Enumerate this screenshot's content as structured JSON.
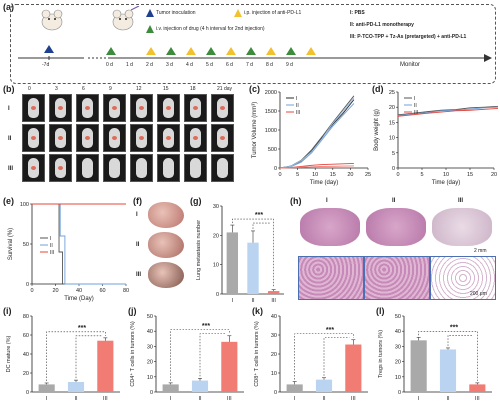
{
  "panels": {
    "a": "(a)",
    "b": "(b)",
    "c": "(c)",
    "d": "(d)",
    "e": "(e)",
    "f": "(f)",
    "g": "(g)",
    "h": "(h)",
    "i": "(i)",
    "j": "(j)",
    "k": "(k)",
    "l": "(l)"
  },
  "timeline": {
    "start_day": "-7d",
    "days": [
      "0 d",
      "1 d",
      "2 d",
      "3 d",
      "4 d",
      "5 d",
      "6 d",
      "7 d",
      "8 d",
      "9 d"
    ],
    "tumor_inoculation": "Tumor inoculation",
    "ip_injection": "i.p. injection of anti-PD-L1",
    "iv_injection": "i.v. injection of drug (4 h interval for 2nd injection)",
    "groups": [
      "I: PBS",
      "II: anti-PD-L1 monotherapy",
      "III: P-TCO-TPP + Tz-As (pretargeted) + anti-PD-L1"
    ],
    "monitor": "Monitor",
    "colors": {
      "tumor": "#1f3f8f",
      "ip": "#f2c12e",
      "iv": "#3c8c3c"
    }
  },
  "imaging": {
    "days": [
      "0",
      "3",
      "6",
      "9",
      "12",
      "15",
      "18",
      "21 day"
    ],
    "rows": [
      "I",
      "II",
      "III"
    ]
  },
  "chart_data": [
    {
      "panel": "c",
      "type": "line",
      "xlabel": "Time (day)",
      "ylabel": "Tumor Volume (mm³)",
      "xlim": [
        0,
        25
      ],
      "ylim": [
        0,
        2000
      ],
      "xticks": [
        "0",
        "5",
        "10",
        "15",
        "20",
        "25"
      ],
      "yticks": [
        "0",
        "500",
        "1000",
        "1500",
        "2000"
      ],
      "legend": [
        "I",
        "II",
        "III"
      ],
      "series": [
        {
          "name": "I",
          "color": "#2a2a2a",
          "x": [
            0,
            3,
            6,
            9,
            12,
            15,
            18,
            21
          ],
          "y": [
            0,
            40,
            180,
            450,
            800,
            1150,
            1450,
            1800
          ]
        },
        {
          "name": "I",
          "color": "#555555",
          "x": [
            0,
            3,
            6,
            9,
            12,
            15,
            18,
            21
          ],
          "y": [
            0,
            50,
            200,
            480,
            830,
            1200,
            1550,
            1900
          ]
        },
        {
          "name": "II",
          "color": "#6fa0d8",
          "x": [
            0,
            3,
            6,
            9,
            12,
            15,
            18,
            21
          ],
          "y": [
            0,
            30,
            150,
            400,
            750,
            1100,
            1400,
            1700
          ]
        },
        {
          "name": "II",
          "color": "#9bbfe6",
          "x": [
            0,
            3,
            6,
            9,
            12,
            15,
            18,
            21
          ],
          "y": [
            0,
            45,
            190,
            430,
            780,
            1180,
            1500,
            1850
          ]
        },
        {
          "name": "III",
          "color": "#e8443a",
          "x": [
            0,
            3,
            6,
            9,
            12,
            15,
            18,
            21
          ],
          "y": [
            0,
            10,
            40,
            70,
            90,
            100,
            110,
            120
          ]
        },
        {
          "name": "III",
          "color": "#f07c74",
          "x": [
            0,
            3,
            6,
            9,
            12,
            15,
            18,
            21
          ],
          "y": [
            0,
            5,
            20,
            30,
            40,
            45,
            50,
            55
          ]
        }
      ]
    },
    {
      "panel": "d",
      "type": "line",
      "xlabel": "Time (day)",
      "ylabel": "Body weight (g)",
      "xlim": [
        0,
        20
      ],
      "ylim": [
        0,
        25
      ],
      "xticks": [
        "0",
        "5",
        "10",
        "15",
        "20"
      ],
      "yticks": [
        "0",
        "5",
        "10",
        "15",
        "20",
        "25"
      ],
      "legend": [
        "I",
        "II",
        "III"
      ],
      "series": [
        {
          "name": "I",
          "color": "#555555",
          "x": [
            0,
            3,
            6,
            9,
            12,
            15,
            18,
            21
          ],
          "y": [
            17.5,
            18.0,
            18.5,
            19.0,
            19.2,
            19.8,
            20.0,
            20.3
          ]
        },
        {
          "name": "II",
          "color": "#6fa0d8",
          "x": [
            0,
            3,
            6,
            9,
            12,
            15,
            18,
            21
          ],
          "y": [
            17.2,
            17.8,
            18.2,
            18.8,
            19.0,
            19.4,
            19.8,
            20.0
          ]
        },
        {
          "name": "III",
          "color": "#e8443a",
          "x": [
            0,
            3,
            6,
            9,
            12,
            15,
            18,
            21
          ],
          "y": [
            17.0,
            17.5,
            18.0,
            18.4,
            18.8,
            19.0,
            19.3,
            19.6
          ]
        }
      ]
    },
    {
      "panel": "e",
      "type": "line",
      "xlabel": "Time (Day)",
      "ylabel": "Survival (%)",
      "xlim": [
        0,
        80
      ],
      "ylim": [
        0,
        100
      ],
      "xticks": [
        "0",
        "20",
        "40",
        "60",
        "80"
      ],
      "yticks": [
        "0",
        "50",
        "100"
      ],
      "legend": [
        "I",
        "II",
        "III"
      ],
      "series": [
        {
          "name": "I",
          "color": "#555555",
          "x": [
            0,
            23,
            23,
            26,
            26,
            80
          ],
          "y": [
            100,
            100,
            40,
            40,
            0,
            0
          ]
        },
        {
          "name": "II",
          "color": "#6fa0d8",
          "x": [
            0,
            24,
            24,
            28,
            28,
            80
          ],
          "y": [
            100,
            100,
            60,
            60,
            0,
            0
          ]
        },
        {
          "name": "III",
          "color": "#e8443a",
          "x": [
            0,
            80
          ],
          "y": [
            100,
            100
          ]
        }
      ]
    },
    {
      "panel": "g",
      "type": "bar",
      "ylabel": "Lung metastasis number",
      "categories": [
        "I",
        "II",
        "III"
      ],
      "values": [
        21,
        17.5,
        1
      ],
      "errors": [
        2.5,
        4,
        0.5
      ],
      "colors": [
        "#a9a9a9",
        "#b9d3f0",
        "#f07c74"
      ],
      "ylim": [
        0,
        30
      ],
      "yticks": [
        "0",
        "10",
        "20",
        "30"
      ],
      "significance": "***"
    },
    {
      "panel": "i",
      "type": "bar",
      "ylabel": "DC mature (%)",
      "categories": [
        "I",
        "II",
        "III"
      ],
      "values": [
        8,
        10.5,
        54
      ],
      "errors": [
        1.5,
        2,
        3
      ],
      "colors": [
        "#a9a9a9",
        "#b9d3f0",
        "#f07c74"
      ],
      "ylim": [
        0,
        80
      ],
      "yticks": [
        "0",
        "20",
        "40",
        "60",
        "80"
      ],
      "significance": "***"
    },
    {
      "panel": "j",
      "type": "bar",
      "ylabel": "CD4⁺ T cells in tumors (%)",
      "categories": [
        "I",
        "II",
        "III"
      ],
      "values": [
        5,
        7.5,
        33
      ],
      "errors": [
        1,
        1.5,
        4
      ],
      "colors": [
        "#a9a9a9",
        "#b9d3f0",
        "#f07c74"
      ],
      "ylim": [
        0,
        50
      ],
      "yticks": [
        "0",
        "10",
        "20",
        "30",
        "40",
        "50"
      ],
      "significance": "***"
    },
    {
      "panel": "k",
      "type": "bar",
      "ylabel": "CD8⁺ T cells in tumors (%)",
      "categories": [
        "I",
        "II",
        "III"
      ],
      "values": [
        4,
        6.5,
        25
      ],
      "errors": [
        1.5,
        1,
        2.5
      ],
      "colors": [
        "#a9a9a9",
        "#b9d3f0",
        "#f07c74"
      ],
      "ylim": [
        0,
        40
      ],
      "yticks": [
        "0",
        "10",
        "20",
        "30",
        "40"
      ],
      "significance": "***"
    },
    {
      "panel": "l",
      "type": "bar",
      "ylabel": "Tregs in tumors (%)",
      "categories": [
        "I",
        "II",
        "III"
      ],
      "values": [
        34,
        28,
        5
      ],
      "errors": [
        2,
        1,
        1
      ],
      "colors": [
        "#a9a9a9",
        "#b9d3f0",
        "#f07c74"
      ],
      "ylim": [
        0,
        50
      ],
      "yticks": [
        "0",
        "10",
        "20",
        "30",
        "40",
        "50"
      ],
      "significance": "***"
    }
  ],
  "lungs": {
    "rows": [
      "I",
      "II",
      "III"
    ]
  },
  "histology": {
    "groups": [
      "I",
      "II",
      "III"
    ],
    "scale_top": "2 mm",
    "scale_bottom": "200 μm"
  }
}
